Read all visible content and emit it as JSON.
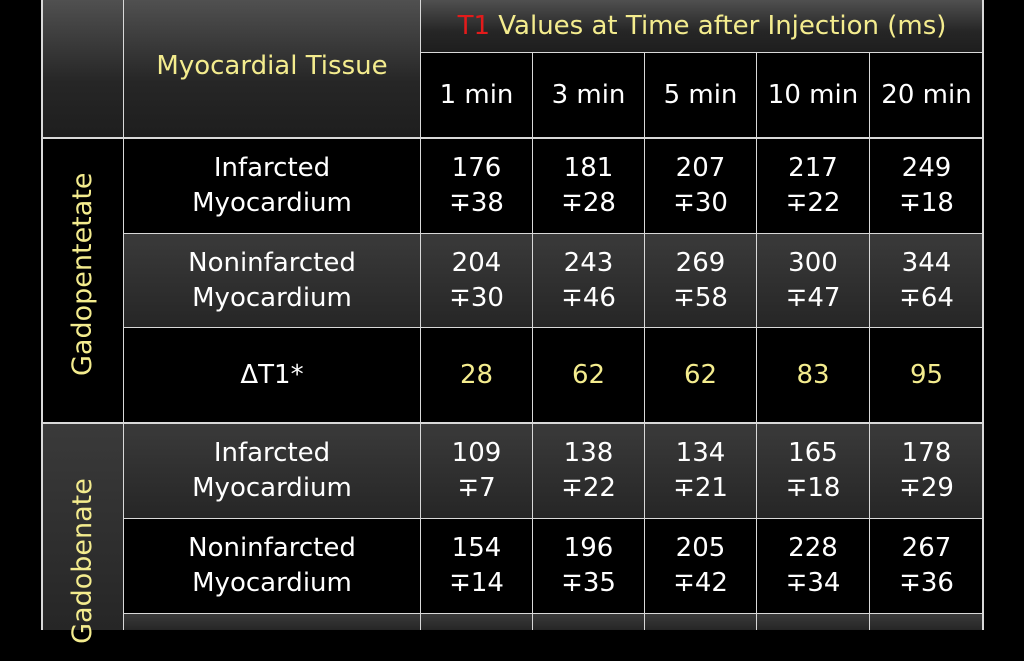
{
  "header": {
    "tissue_label": "Myocardial Tissue",
    "title_t1": "T1",
    "title_rest": " Values at Time after Injection (ms)",
    "times": [
      "1 min",
      "3 min",
      "5 min",
      "10 min",
      "20 min"
    ]
  },
  "groups": [
    {
      "label": "Gadopentetate"
    },
    {
      "label": "Gadobenate"
    }
  ],
  "rows": [
    {
      "tissue": [
        "Infarcted",
        "Myocardium"
      ],
      "values": [
        [
          "176",
          "∓38"
        ],
        [
          "181",
          "∓28"
        ],
        [
          "207",
          "∓30"
        ],
        [
          "217",
          "∓22"
        ],
        [
          "249",
          "∓18"
        ]
      ]
    },
    {
      "tissue": [
        "Noninfarcted",
        "Myocardium"
      ],
      "values": [
        [
          "204",
          "∓30"
        ],
        [
          "243",
          "∓46"
        ],
        [
          "269",
          "∓58"
        ],
        [
          "300",
          "∓47"
        ],
        [
          "344",
          "∓64"
        ]
      ]
    },
    {
      "tissue": [
        "ΔT1*"
      ],
      "values": [
        "28",
        "62",
        "62",
        "83",
        "95"
      ]
    },
    {
      "tissue": [
        "Infarcted",
        "Myocardium"
      ],
      "values": [
        [
          "109",
          "∓7"
        ],
        [
          "138",
          "∓22"
        ],
        [
          "134",
          "∓21"
        ],
        [
          "165",
          "∓18"
        ],
        [
          "178",
          "∓29"
        ]
      ]
    },
    {
      "tissue": [
        "Noninfarcted",
        "Myocardium"
      ],
      "values": [
        [
          "154",
          "∓14"
        ],
        [
          "196",
          "∓35"
        ],
        [
          "205",
          "∓42"
        ],
        [
          "228",
          "∓34"
        ],
        [
          "267",
          "∓36"
        ]
      ]
    }
  ],
  "colors": {
    "accent_yellow": "#f4ec8e",
    "accent_red": "#e31b1b"
  }
}
